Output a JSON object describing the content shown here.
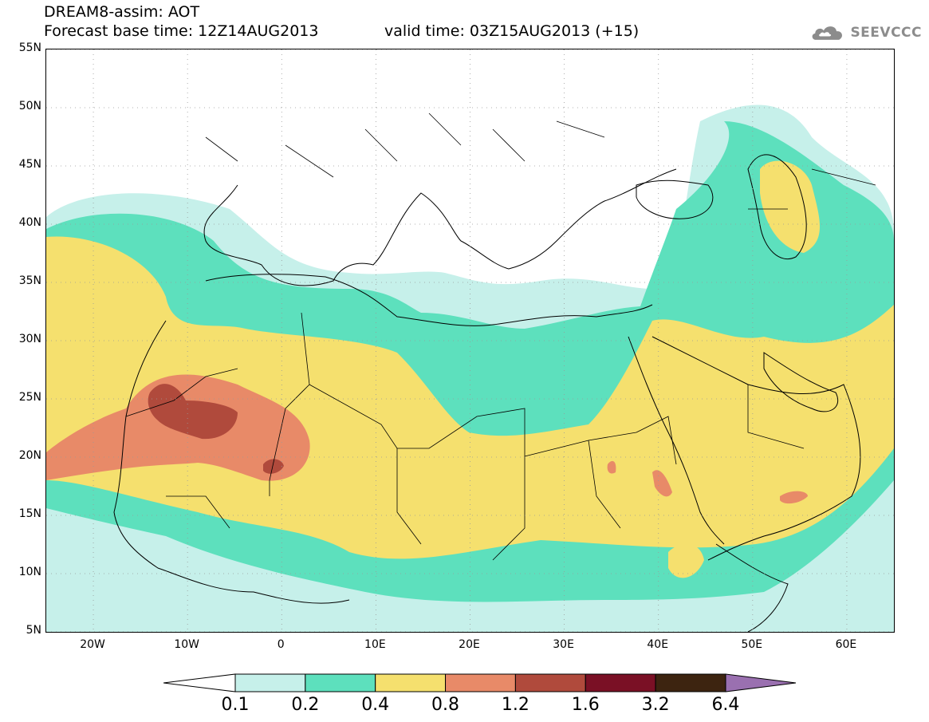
{
  "header": {
    "title_line1": "DREAM8-assim: AOT",
    "title_line2": "Forecast base time: 12Z14AUG2013",
    "valid_time": "valid time: 03Z15AUG2013 (+15)"
  },
  "logo": {
    "text": "SEEVCCC",
    "icon": "cloud-icon"
  },
  "map": {
    "variable": "AOT",
    "lat_labels": [
      "55N",
      "50N",
      "45N",
      "40N",
      "35N",
      "30N",
      "25N",
      "20N",
      "15N",
      "10N",
      "5N"
    ],
    "lat_values": [
      55,
      50,
      45,
      40,
      35,
      30,
      25,
      20,
      15,
      10,
      5
    ],
    "lon_labels": [
      "20W",
      "10W",
      "0",
      "10E",
      "20E",
      "30E",
      "40E",
      "50E",
      "60E"
    ],
    "lon_values": [
      -20,
      -10,
      0,
      10,
      20,
      30,
      40,
      50,
      60
    ],
    "extent": {
      "lon_min": -25,
      "lon_max": 65,
      "lat_min": 5,
      "lat_max": 55
    },
    "grid": "dotted",
    "colors": {
      "c01": "#c6f0ea",
      "c02": "#5de0bd",
      "c04": "#f5e06e",
      "c08": "#e88a68",
      "c12": "#b04a3c",
      "c16": "#7a1025",
      "c32": "#3d2410",
      "c64": "#9a70b0"
    }
  },
  "colorbar": {
    "labels": [
      "0.1",
      "0.2",
      "0.4",
      "0.8",
      "1.2",
      "1.6",
      "3.2",
      "6.4"
    ],
    "colors": [
      "#c6f0ea",
      "#5de0bd",
      "#f5e06e",
      "#e88a68",
      "#b04a3c",
      "#7a1025",
      "#3d2410"
    ],
    "under_color": "#ffffff",
    "over_color": "#9a70b0"
  }
}
